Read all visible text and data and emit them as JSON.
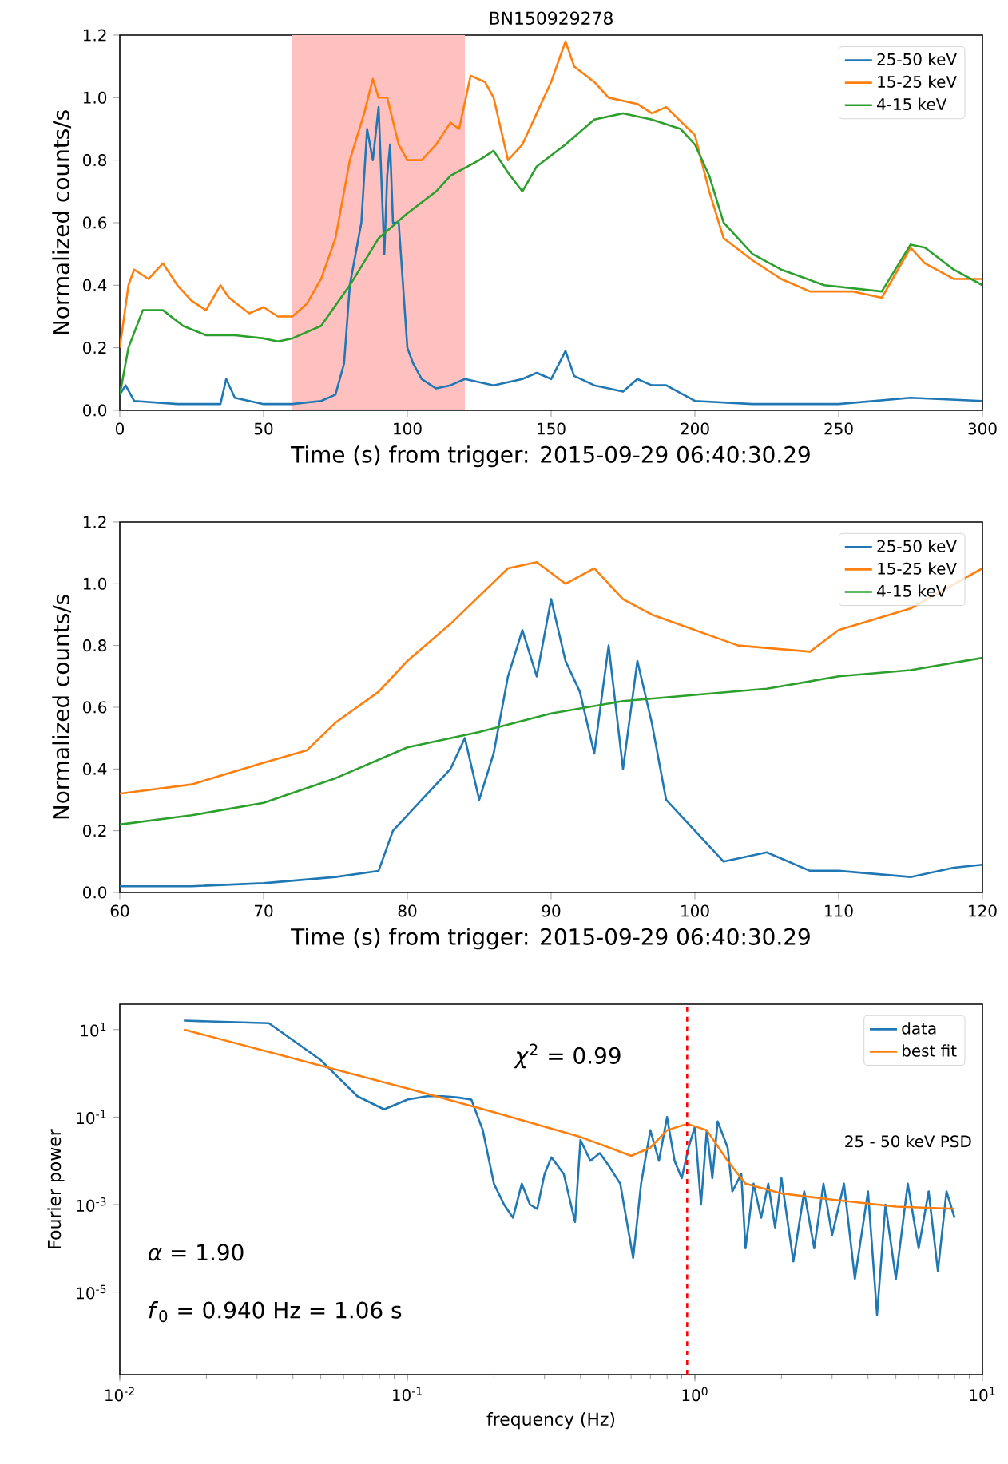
{
  "chart_data": [
    {
      "type": "line",
      "title": "BN150929278",
      "xlabel": "Time (s) from trigger: 2015-09-29 06:40:30.29",
      "ylabel": "Normalized counts/s",
      "xlim": [
        0,
        300
      ],
      "ylim": [
        0,
        1.2
      ],
      "xticks": [
        0,
        50,
        100,
        150,
        200,
        250,
        300
      ],
      "yticks": [
        {
          "value": 0,
          "label": "0.0"
        },
        {
          "value": 0.2,
          "label": "0.2"
        },
        {
          "value": 0.4,
          "label": "0.4"
        },
        {
          "value": 0.6,
          "label": "0.6"
        },
        {
          "value": 0.8,
          "label": "0.8"
        },
        {
          "value": 1.0,
          "label": "1.0"
        },
        {
          "value": 1.2,
          "label": "1.2"
        }
      ],
      "legend": "top right",
      "bands": [
        {
          "axis": "x",
          "from": 60,
          "to": 120,
          "color": "#ffc0c0"
        }
      ],
      "series": [
        {
          "name": "25-50 keV",
          "color": "#1f77b4",
          "x": [
            0,
            2,
            5,
            20,
            35,
            37,
            40,
            50,
            60,
            70,
            75,
            78,
            80,
            84,
            86,
            88,
            90,
            92,
            93,
            94,
            95,
            97,
            100,
            102,
            105,
            110,
            115,
            120,
            130,
            140,
            145,
            150,
            155,
            158,
            165,
            175,
            180,
            185,
            190,
            200,
            220,
            250,
            275,
            300
          ],
          "values": [
            0.05,
            0.08,
            0.03,
            0.02,
            0.02,
            0.1,
            0.04,
            0.02,
            0.02,
            0.03,
            0.05,
            0.15,
            0.4,
            0.6,
            0.9,
            0.8,
            0.97,
            0.5,
            0.75,
            0.85,
            0.6,
            0.6,
            0.2,
            0.15,
            0.1,
            0.07,
            0.08,
            0.1,
            0.08,
            0.1,
            0.12,
            0.1,
            0.19,
            0.11,
            0.08,
            0.06,
            0.1,
            0.08,
            0.08,
            0.03,
            0.02,
            0.02,
            0.04,
            0.03
          ]
        },
        {
          "name": "15-25 keV",
          "color": "#ff7f0e",
          "x": [
            0,
            3,
            5,
            10,
            15,
            20,
            25,
            30,
            35,
            38,
            45,
            50,
            55,
            60,
            65,
            70,
            75,
            80,
            85,
            88,
            90,
            93,
            97,
            100,
            105,
            110,
            115,
            118,
            122,
            127,
            130,
            135,
            140,
            145,
            150,
            155,
            158,
            165,
            170,
            180,
            185,
            190,
            200,
            205,
            210,
            220,
            230,
            240,
            255,
            265,
            275,
            280,
            290,
            300
          ],
          "values": [
            0.2,
            0.4,
            0.45,
            0.42,
            0.47,
            0.4,
            0.35,
            0.32,
            0.4,
            0.36,
            0.31,
            0.33,
            0.3,
            0.3,
            0.34,
            0.42,
            0.55,
            0.8,
            0.95,
            1.06,
            1.0,
            1.0,
            0.85,
            0.8,
            0.8,
            0.85,
            0.92,
            0.9,
            1.07,
            1.05,
            1.0,
            0.8,
            0.85,
            0.95,
            1.05,
            1.18,
            1.1,
            1.05,
            1.0,
            0.98,
            0.95,
            0.97,
            0.88,
            0.7,
            0.55,
            0.48,
            0.42,
            0.38,
            0.38,
            0.36,
            0.52,
            0.47,
            0.42,
            0.42
          ]
        },
        {
          "name": "4-15 keV",
          "color": "#2ca02c",
          "x": [
            0,
            3,
            8,
            15,
            22,
            30,
            40,
            50,
            55,
            60,
            70,
            80,
            90,
            100,
            110,
            115,
            125,
            130,
            135,
            140,
            145,
            155,
            165,
            175,
            185,
            195,
            200,
            205,
            210,
            220,
            230,
            245,
            265,
            275,
            280,
            290,
            300
          ],
          "values": [
            0.05,
            0.2,
            0.32,
            0.32,
            0.27,
            0.24,
            0.24,
            0.23,
            0.22,
            0.23,
            0.27,
            0.4,
            0.55,
            0.63,
            0.7,
            0.75,
            0.8,
            0.83,
            0.76,
            0.7,
            0.78,
            0.85,
            0.93,
            0.95,
            0.93,
            0.9,
            0.85,
            0.75,
            0.6,
            0.5,
            0.45,
            0.4,
            0.38,
            0.53,
            0.52,
            0.45,
            0.4
          ]
        }
      ]
    },
    {
      "type": "line",
      "xlabel": "Time (s) from trigger: 2015-09-29 06:40:30.29",
      "ylabel": "Normalized counts/s",
      "xlim": [
        60,
        120
      ],
      "ylim": [
        0,
        1.2
      ],
      "xticks": [
        60,
        70,
        80,
        90,
        100,
        110,
        120
      ],
      "yticks": [
        {
          "value": 0,
          "label": "0.0"
        },
        {
          "value": 0.2,
          "label": "0.2"
        },
        {
          "value": 0.4,
          "label": "0.4"
        },
        {
          "value": 0.6,
          "label": "0.6"
        },
        {
          "value": 0.8,
          "label": "0.8"
        },
        {
          "value": 1.0,
          "label": "1.0"
        },
        {
          "value": 1.2,
          "label": "1.2"
        }
      ],
      "legend": "top right",
      "series": [
        {
          "name": "25-50 keV",
          "color": "#1f77b4",
          "x": [
            60,
            65,
            70,
            75,
            78,
            79,
            81,
            83,
            84,
            85,
            86,
            87,
            88,
            89,
            90,
            91,
            92,
            93,
            94,
            95,
            96,
            97,
            98,
            100,
            102,
            105,
            108,
            110,
            115,
            118,
            120
          ],
          "values": [
            0.02,
            0.02,
            0.03,
            0.05,
            0.07,
            0.2,
            0.3,
            0.4,
            0.5,
            0.3,
            0.45,
            0.7,
            0.85,
            0.7,
            0.95,
            0.75,
            0.65,
            0.45,
            0.8,
            0.4,
            0.75,
            0.55,
            0.3,
            0.2,
            0.1,
            0.13,
            0.07,
            0.07,
            0.05,
            0.08,
            0.09
          ]
        },
        {
          "name": "15-25 keV",
          "color": "#ff7f0e",
          "x": [
            60,
            65,
            70,
            73,
            75,
            78,
            80,
            83,
            85,
            87,
            89,
            91,
            93,
            95,
            97,
            100,
            103,
            108,
            110,
            115,
            120
          ],
          "values": [
            0.32,
            0.35,
            0.42,
            0.46,
            0.55,
            0.65,
            0.75,
            0.87,
            0.96,
            1.05,
            1.07,
            1.0,
            1.05,
            0.95,
            0.9,
            0.85,
            0.8,
            0.78,
            0.85,
            0.92,
            1.05
          ]
        },
        {
          "name": "4-15 keV",
          "color": "#2ca02c",
          "x": [
            60,
            65,
            70,
            75,
            80,
            85,
            90,
            95,
            100,
            105,
            110,
            115,
            120
          ],
          "values": [
            0.22,
            0.25,
            0.29,
            0.37,
            0.47,
            0.52,
            0.58,
            0.62,
            0.64,
            0.66,
            0.7,
            0.72,
            0.76
          ]
        }
      ]
    },
    {
      "type": "line",
      "xlabel": "frequency (Hz)",
      "ylabel": "Fourier power",
      "log": "xy",
      "xlim": [
        0.01,
        10
      ],
      "ylim": [
        1.3e-07,
        38
      ],
      "xticks": [
        {
          "value": 0.01,
          "label": "10$^{-2}$"
        },
        {
          "value": 0.1,
          "label": "10$^{-1}$"
        },
        {
          "value": 1,
          "label": "10$^{0}$"
        },
        {
          "value": 10,
          "label": "10$^{1}$"
        }
      ],
      "yticks": [
        {
          "value": 1e-05,
          "label": "10$^{-5}$"
        },
        {
          "value": 0.001,
          "label": "10$^{-3}$"
        },
        {
          "value": 0.1,
          "label": "10$^{-1}$"
        },
        {
          "value": 10,
          "label": "10$^{1}$"
        }
      ],
      "legend": "top right",
      "ref_lines": [
        {
          "axis": "x",
          "value": 0.94,
          "color": "#ff0000",
          "line_style": "dashed"
        }
      ],
      "annotations": [
        "*χ*$^{2}$ = 0.99",
        "25 - 50 keV PSD",
        "*α* = 1.90",
        "*f*$_{0}$ = 0.940 Hz = 1.06 s"
      ],
      "series": [
        {
          "name": "data",
          "color": "#1f77b4",
          "x": [
            0.0167,
            0.033,
            0.05,
            0.067,
            0.083,
            0.1,
            0.117,
            0.133,
            0.15,
            0.167,
            0.183,
            0.2,
            0.217,
            0.233,
            0.25,
            0.267,
            0.283,
            0.3,
            0.317,
            0.35,
            0.383,
            0.4,
            0.433,
            0.467,
            0.5,
            0.55,
            0.61,
            0.65,
            0.7,
            0.75,
            0.8,
            0.85,
            0.9,
            0.95,
            1.0,
            1.05,
            1.1,
            1.15,
            1.2,
            1.3,
            1.35,
            1.45,
            1.5,
            1.6,
            1.7,
            1.8,
            1.9,
            2.0,
            2.2,
            2.4,
            2.6,
            2.8,
            3.0,
            3.3,
            3.6,
            4.0,
            4.3,
            4.6,
            5.0,
            5.5,
            6.0,
            6.5,
            7.0,
            7.5,
            8.0
          ],
          "values": [
            16,
            14,
            2,
            0.3,
            0.15,
            0.25,
            0.3,
            0.3,
            0.28,
            0.25,
            0.05,
            0.003,
            0.001,
            0.0005,
            0.003,
            0.001,
            0.0008,
            0.005,
            0.012,
            0.005,
            0.0004,
            0.03,
            0.01,
            0.015,
            0.008,
            0.003,
            6e-05,
            0.003,
            0.05,
            0.01,
            0.1,
            0.01,
            0.004,
            0.02,
            0.06,
            0.001,
            0.05,
            0.004,
            0.08,
            0.02,
            0.002,
            0.005,
            0.0001,
            0.003,
            0.0005,
            0.003,
            0.0003,
            0.004,
            5e-05,
            0.002,
            0.0001,
            0.003,
            0.0002,
            0.003,
            2e-05,
            0.002,
            3e-06,
            0.001,
            2e-05,
            0.003,
            0.0001,
            0.002,
            3e-05,
            0.002,
            0.0005
          ]
        },
        {
          "name": "best fit",
          "color": "#ff7f0e",
          "x": [
            0.0167,
            0.05,
            0.1,
            0.2,
            0.4,
            0.6,
            0.7,
            0.8,
            0.94,
            1.1,
            1.3,
            1.5,
            2,
            3,
            5,
            8
          ],
          "values": [
            10,
            1.5,
            0.45,
            0.13,
            0.035,
            0.013,
            0.02,
            0.05,
            0.07,
            0.05,
            0.01,
            0.003,
            0.0018,
            0.0013,
            0.0009,
            0.0008
          ]
        }
      ]
    }
  ]
}
